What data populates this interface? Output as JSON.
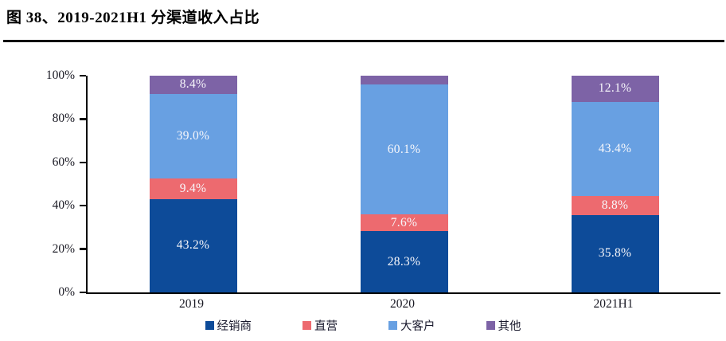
{
  "figure": {
    "title": "图 38、2019-2021H1 分渠道收入占比"
  },
  "chart_data": {
    "type": "bar",
    "stacked": true,
    "title": "图 38、2019-2021H1 分渠道收入占比",
    "categories": [
      "2019",
      "2020",
      "2021H1"
    ],
    "series": [
      {
        "name": "经销商",
        "color": "#0D4B99",
        "values": [
          43.2,
          28.3,
          35.8
        ],
        "labels": [
          "43.2%",
          "28.3%",
          "35.8%"
        ]
      },
      {
        "name": "直营",
        "color": "#ED6A6F",
        "values": [
          9.4,
          7.6,
          8.8
        ],
        "labels": [
          "9.4%",
          "7.6%",
          "8.8%"
        ]
      },
      {
        "name": "大客户",
        "color": "#68A0E2",
        "values": [
          39.0,
          60.1,
          43.4
        ],
        "labels": [
          "39.0%",
          "60.1%",
          "43.4%"
        ]
      },
      {
        "name": "其他",
        "color": "#7D63A6",
        "values": [
          8.4,
          4.0,
          12.1
        ],
        "labels": [
          "8.4%",
          null,
          "12.1%"
        ]
      }
    ],
    "xlabel": "",
    "ylabel": "",
    "ylim": [
      0,
      100
    ],
    "yticks": [
      "0%",
      "20%",
      "40%",
      "60%",
      "80%",
      "100%"
    ],
    "grid": false,
    "legend_position": "bottom",
    "axis_color": "#000000",
    "label_text_color": "#ffffff"
  }
}
